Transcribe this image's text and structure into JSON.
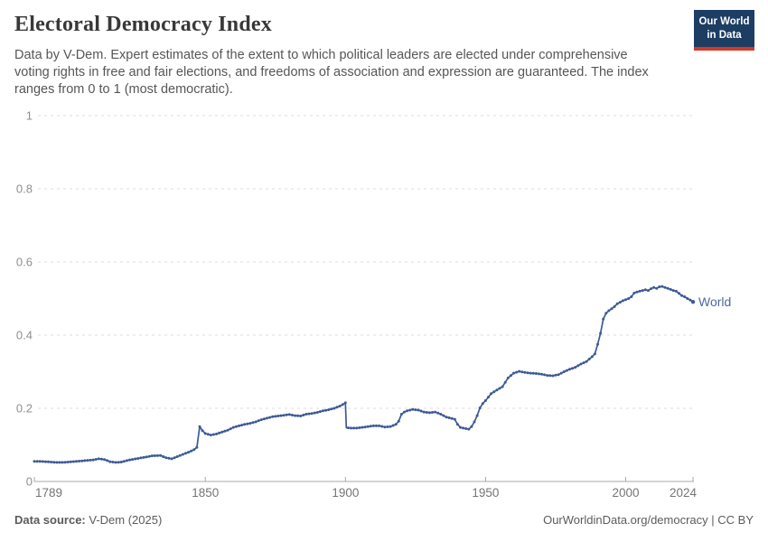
{
  "header": {
    "title": "Electoral Democracy Index",
    "subtitle_lines": [
      "Data by V-Dem. Expert estimates of the extent to which political leaders are elected under comprehensive",
      "voting rights in free and fair elections, and freedoms of association and expression are guaranteed. The index",
      "ranges from 0 to 1 (most democratic)."
    ],
    "logo": {
      "line1": "Our World",
      "line2": "in Data",
      "bg_color": "#1d3d63",
      "accent_color": "#d23a2b"
    }
  },
  "footer": {
    "source_label": "Data source:",
    "source_value": " V-Dem (2025)",
    "link_text": "OurWorldinData.org/democracy",
    "license_text": " | CC BY"
  },
  "chart_data": {
    "type": "line",
    "title": "Electoral Democracy Index",
    "xlabel": "",
    "ylabel": "",
    "xlim": [
      1789,
      2024
    ],
    "ylim": [
      0,
      1
    ],
    "grid": "horizontal dashed",
    "legend_position": "end-of-line",
    "x_ticks": [
      1789,
      1850,
      1900,
      1950,
      2000,
      2024
    ],
    "y_ticks": [
      "0",
      "0.2",
      "0.4",
      "0.6",
      "0.8",
      "1"
    ],
    "line_color": "#3d5a94",
    "label_color": "#4c6a9c",
    "series": [
      {
        "name": "World",
        "points": [
          [
            1789,
            0.055
          ],
          [
            1791,
            0.055
          ],
          [
            1793,
            0.054
          ],
          [
            1795,
            0.053
          ],
          [
            1797,
            0.052
          ],
          [
            1799,
            0.052
          ],
          [
            1801,
            0.053
          ],
          [
            1804,
            0.055
          ],
          [
            1807,
            0.057
          ],
          [
            1810,
            0.059
          ],
          [
            1812,
            0.062
          ],
          [
            1814,
            0.06
          ],
          [
            1816,
            0.054
          ],
          [
            1818,
            0.052
          ],
          [
            1820,
            0.053
          ],
          [
            1823,
            0.059
          ],
          [
            1826,
            0.063
          ],
          [
            1829,
            0.067
          ],
          [
            1831,
            0.07
          ],
          [
            1834,
            0.071
          ],
          [
            1836,
            0.065
          ],
          [
            1838,
            0.062
          ],
          [
            1840,
            0.068
          ],
          [
            1842,
            0.074
          ],
          [
            1844,
            0.08
          ],
          [
            1846,
            0.087
          ],
          [
            1847,
            0.093
          ],
          [
            1848,
            0.15
          ],
          [
            1849,
            0.139
          ],
          [
            1850,
            0.131
          ],
          [
            1852,
            0.127
          ],
          [
            1854,
            0.13
          ],
          [
            1856,
            0.135
          ],
          [
            1858,
            0.14
          ],
          [
            1860,
            0.148
          ],
          [
            1862,
            0.152
          ],
          [
            1864,
            0.156
          ],
          [
            1866,
            0.159
          ],
          [
            1868,
            0.163
          ],
          [
            1870,
            0.169
          ],
          [
            1872,
            0.173
          ],
          [
            1874,
            0.177
          ],
          [
            1876,
            0.179
          ],
          [
            1878,
            0.181
          ],
          [
            1880,
            0.183
          ],
          [
            1882,
            0.18
          ],
          [
            1884,
            0.179
          ],
          [
            1886,
            0.184
          ],
          [
            1888,
            0.186
          ],
          [
            1890,
            0.189
          ],
          [
            1892,
            0.193
          ],
          [
            1894,
            0.196
          ],
          [
            1896,
            0.2
          ],
          [
            1898,
            0.206
          ],
          [
            1899,
            0.21
          ],
          [
            1900,
            0.215
          ],
          [
            1900.3,
            0.147
          ],
          [
            1902,
            0.146
          ],
          [
            1904,
            0.146
          ],
          [
            1906,
            0.148
          ],
          [
            1908,
            0.15
          ],
          [
            1910,
            0.152
          ],
          [
            1912,
            0.152
          ],
          [
            1914,
            0.149
          ],
          [
            1916,
            0.15
          ],
          [
            1918,
            0.156
          ],
          [
            1919,
            0.165
          ],
          [
            1920,
            0.184
          ],
          [
            1921,
            0.19
          ],
          [
            1922,
            0.193
          ],
          [
            1924,
            0.197
          ],
          [
            1926,
            0.195
          ],
          [
            1928,
            0.19
          ],
          [
            1930,
            0.188
          ],
          [
            1932,
            0.19
          ],
          [
            1934,
            0.184
          ],
          [
            1936,
            0.176
          ],
          [
            1938,
            0.172
          ],
          [
            1939,
            0.17
          ],
          [
            1940,
            0.156
          ],
          [
            1941,
            0.148
          ],
          [
            1942,
            0.146
          ],
          [
            1944,
            0.143
          ],
          [
            1945,
            0.15
          ],
          [
            1946,
            0.163
          ],
          [
            1947,
            0.18
          ],
          [
            1948,
            0.201
          ],
          [
            1949,
            0.213
          ],
          [
            1950,
            0.221
          ],
          [
            1952,
            0.24
          ],
          [
            1954,
            0.25
          ],
          [
            1956,
            0.259
          ],
          [
            1958,
            0.283
          ],
          [
            1960,
            0.296
          ],
          [
            1962,
            0.301
          ],
          [
            1964,
            0.298
          ],
          [
            1966,
            0.296
          ],
          [
            1968,
            0.295
          ],
          [
            1970,
            0.293
          ],
          [
            1972,
            0.29
          ],
          [
            1974,
            0.289
          ],
          [
            1976,
            0.292
          ],
          [
            1978,
            0.3
          ],
          [
            1980,
            0.307
          ],
          [
            1982,
            0.312
          ],
          [
            1984,
            0.321
          ],
          [
            1986,
            0.328
          ],
          [
            1988,
            0.341
          ],
          [
            1989,
            0.349
          ],
          [
            1990,
            0.375
          ],
          [
            1991,
            0.405
          ],
          [
            1992,
            0.444
          ],
          [
            1993,
            0.46
          ],
          [
            1994,
            0.467
          ],
          [
            1995,
            0.472
          ],
          [
            1996,
            0.478
          ],
          [
            1997,
            0.486
          ],
          [
            1998,
            0.49
          ],
          [
            1999,
            0.494
          ],
          [
            2000,
            0.497
          ],
          [
            2001,
            0.5
          ],
          [
            2002,
            0.505
          ],
          [
            2003,
            0.515
          ],
          [
            2004,
            0.518
          ],
          [
            2005,
            0.52
          ],
          [
            2006,
            0.522
          ],
          [
            2007,
            0.524
          ],
          [
            2008,
            0.522
          ],
          [
            2009,
            0.527
          ],
          [
            2010,
            0.53
          ],
          [
            2011,
            0.528
          ],
          [
            2012,
            0.532
          ],
          [
            2013,
            0.533
          ],
          [
            2014,
            0.53
          ],
          [
            2015,
            0.528
          ],
          [
            2016,
            0.525
          ],
          [
            2017,
            0.522
          ],
          [
            2018,
            0.52
          ],
          [
            2019,
            0.514
          ],
          [
            2020,
            0.508
          ],
          [
            2021,
            0.505
          ],
          [
            2022,
            0.5
          ],
          [
            2023,
            0.496
          ],
          [
            2024,
            0.491
          ]
        ]
      }
    ]
  }
}
